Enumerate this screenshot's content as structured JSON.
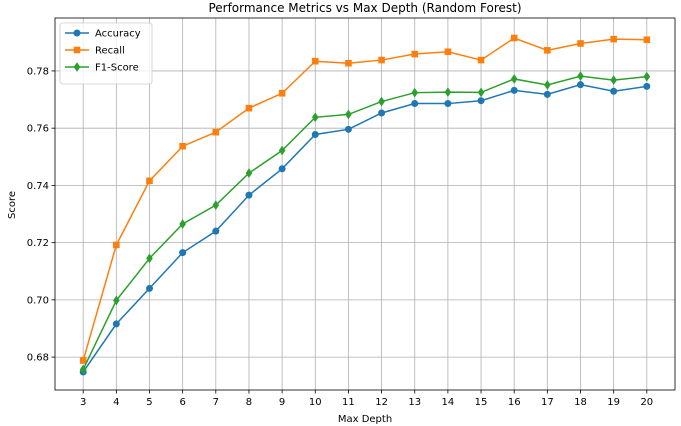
{
  "chart_data": {
    "type": "line",
    "title": "Performance Metrics vs Max Depth (Random Forest)",
    "xlabel": "Max Depth",
    "ylabel": "Score",
    "x": [
      3,
      4,
      5,
      6,
      7,
      8,
      9,
      10,
      11,
      12,
      13,
      14,
      15,
      16,
      17,
      18,
      19,
      20
    ],
    "x_ticks": [
      "3",
      "4",
      "5",
      "6",
      "7",
      "8",
      "9",
      "10",
      "11",
      "12",
      "13",
      "14",
      "15",
      "16",
      "17",
      "18",
      "19",
      "20"
    ],
    "xlim": [
      2.15,
      20.85
    ],
    "ylim": [
      0.6685,
      0.7985
    ],
    "y_ticks": [
      "0.68",
      "0.70",
      "0.72",
      "0.74",
      "0.76",
      "0.78"
    ],
    "grid": true,
    "legend_position": "upper-left",
    "series": [
      {
        "name": "Accuracy",
        "color": "#1f77b4",
        "marker": "circle",
        "values": [
          0.6748,
          0.6916,
          0.704,
          0.7165,
          0.724,
          0.7366,
          0.7458,
          0.7578,
          0.7596,
          0.7653,
          0.7686,
          0.7686,
          0.7696,
          0.7732,
          0.7718,
          0.7752,
          0.7729,
          0.7746
        ]
      },
      {
        "name": "Recall",
        "color": "#ff7f0e",
        "marker": "square",
        "values": [
          0.6788,
          0.7192,
          0.7416,
          0.7537,
          0.7586,
          0.767,
          0.7722,
          0.7834,
          0.7827,
          0.7838,
          0.7859,
          0.7867,
          0.7838,
          0.7915,
          0.7872,
          0.7896,
          0.7911,
          0.7909
        ]
      },
      {
        "name": "F1-Score",
        "color": "#2ca02c",
        "marker": "diamond",
        "values": [
          0.6757,
          0.6998,
          0.7145,
          0.7265,
          0.7331,
          0.7443,
          0.7522,
          0.7638,
          0.7648,
          0.7693,
          0.7724,
          0.7726,
          0.7725,
          0.7772,
          0.7751,
          0.7782,
          0.7768,
          0.778
        ]
      }
    ]
  }
}
